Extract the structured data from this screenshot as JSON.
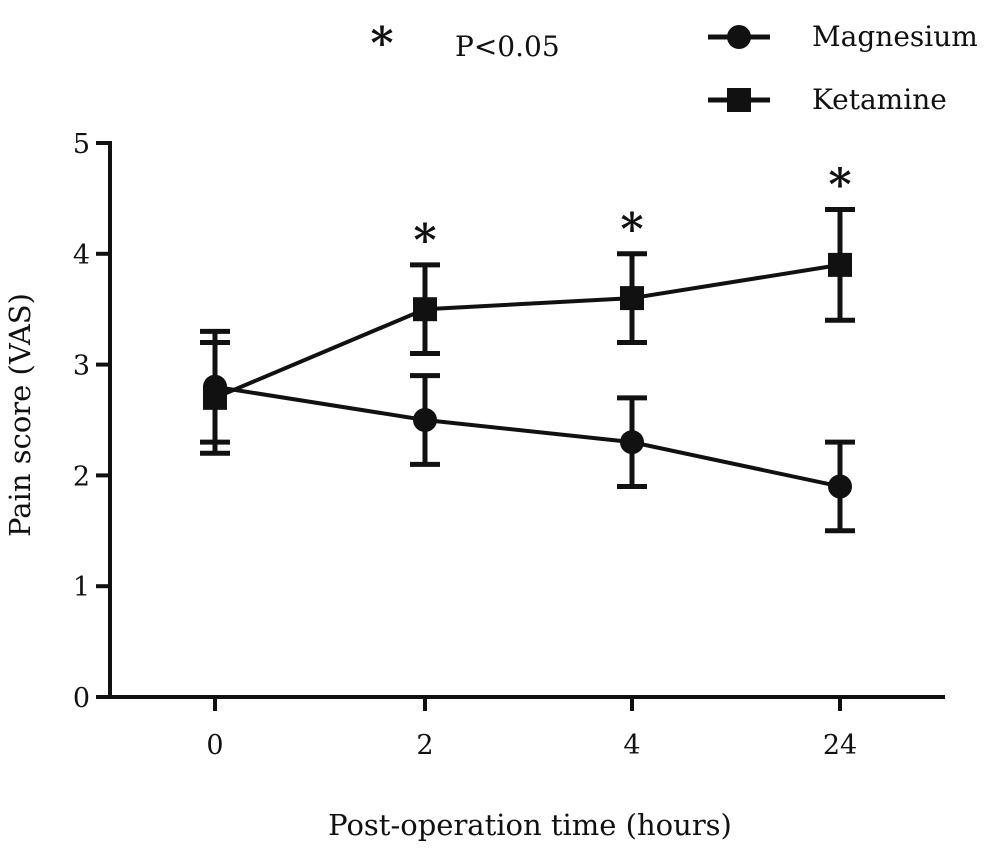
{
  "chart_data": {
    "type": "line",
    "categories": [
      "0",
      "2",
      "4",
      "24"
    ],
    "series": [
      {
        "name": "Magnesium",
        "marker": "circle",
        "values": [
          2.8,
          2.5,
          2.3,
          1.9
        ],
        "error": [
          0.5,
          0.4,
          0.4,
          0.4
        ]
      },
      {
        "name": "Ketamine",
        "marker": "square",
        "values": [
          2.7,
          3.5,
          3.6,
          3.9
        ],
        "error": [
          0.5,
          0.4,
          0.4,
          0.5
        ]
      }
    ],
    "significance_marks": [
      "2",
      "4",
      "24"
    ],
    "significance_symbol": "*",
    "significance_note": "P<0.05",
    "xlabel": "Post-operation time (hours)",
    "ylabel": "Pain score (VAS)",
    "ylim": [
      0,
      5
    ],
    "yticks": [
      "0",
      "1",
      "2",
      "3",
      "4",
      "5"
    ],
    "grid": false,
    "legend_position": "top-right",
    "line_color": "#111111"
  }
}
